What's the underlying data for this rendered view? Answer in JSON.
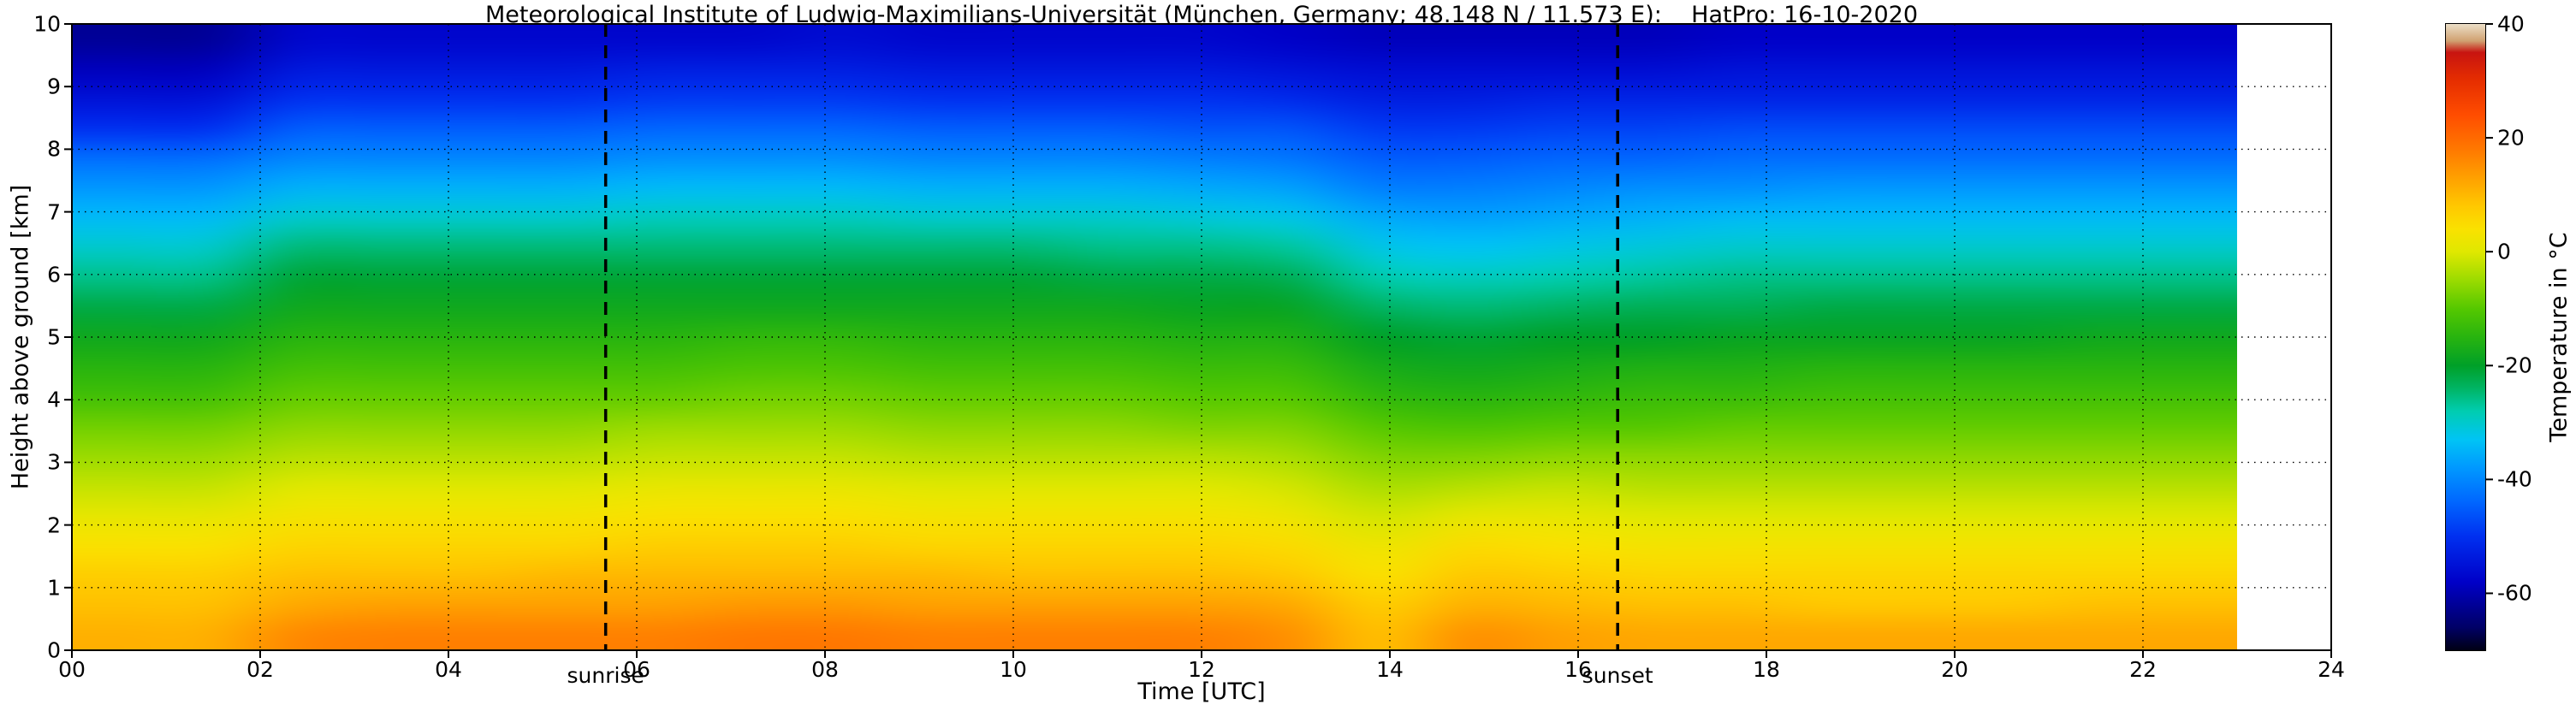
{
  "title": "Meteorological Institute of Ludwig-Maximilians-Universität (München, Germany; 48.148 N / 11.573 E):    HatPro: 16-10-2020",
  "background": "#ffffff",
  "chart_data": {
    "type": "heatmap",
    "xlabel": "Time [UTC]",
    "ylabel": "Height above ground [km]",
    "colorbar_label": "Temperature in °C",
    "x_range": [
      0,
      24
    ],
    "y_range": [
      0,
      10
    ],
    "grid": true,
    "x_tick_values": [
      0,
      2,
      4,
      6,
      8,
      10,
      12,
      14,
      16,
      18,
      20,
      22,
      24
    ],
    "x_tick_labels": [
      "00",
      "02",
      "04",
      "06",
      "08",
      "10",
      "12",
      "14",
      "16",
      "18",
      "20",
      "22",
      "24"
    ],
    "y_tick_values": [
      0,
      1,
      2,
      3,
      4,
      5,
      6,
      7,
      8,
      9,
      10
    ],
    "y_tick_labels": [
      "0",
      "1",
      "2",
      "3",
      "4",
      "5",
      "6",
      "7",
      "8",
      "9",
      "10"
    ],
    "colorbar_range": [
      -70,
      40
    ],
    "colorbar_tick_values": [
      40,
      20,
      0,
      -20,
      -40,
      -60
    ],
    "colorbar_tick_labels": [
      "40",
      "20",
      "0",
      "-20",
      "-40",
      "-60"
    ],
    "sunrise": {
      "time_utc": 5.67,
      "label": "sunrise"
    },
    "sunset": {
      "time_utc": 16.42,
      "label": "sunset"
    },
    "data_end_hour": 23,
    "x_hours": [
      0,
      1,
      2,
      3,
      4,
      5,
      6,
      7,
      8,
      9,
      10,
      11,
      12,
      13,
      14,
      15,
      16,
      17,
      18,
      19,
      20,
      21,
      22,
      23
    ],
    "heights_km": [
      0,
      0.5,
      1,
      1.5,
      2,
      2.5,
      3,
      3.5,
      4,
      4.5,
      5,
      5.5,
      6,
      6.5,
      7,
      7.5,
      8,
      8.5,
      9,
      9.5,
      10
    ],
    "temperature_c": [
      [
        11,
        9,
        7,
        4,
        1,
        -2,
        -5,
        -8,
        -12,
        -15,
        -18,
        -22,
        -26,
        -30,
        -34,
        -38,
        -43,
        -50,
        -55,
        -59,
        -62
      ],
      [
        11,
        9,
        7,
        4,
        1,
        -2,
        -5,
        -8,
        -12,
        -15,
        -18,
        -22,
        -26,
        -30,
        -34,
        -38,
        -43,
        -50,
        -55,
        -59,
        -62
      ],
      [
        16,
        12,
        9,
        6,
        3,
        0,
        -3,
        -6,
        -9,
        -12,
        -15,
        -18,
        -21,
        -25,
        -30,
        -35,
        -40,
        -45,
        -50,
        -54,
        -57
      ],
      [
        17,
        13,
        9,
        6,
        3,
        0,
        -3,
        -6,
        -9,
        -12,
        -15,
        -18,
        -21,
        -25,
        -30,
        -35,
        -40,
        -45,
        -50,
        -54,
        -57
      ],
      [
        17,
        13,
        9,
        6,
        3,
        0,
        -3,
        -6,
        -9,
        -12,
        -15,
        -18,
        -21,
        -25,
        -30,
        -35,
        -40,
        -45,
        -50,
        -54,
        -57
      ],
      [
        17,
        13,
        10,
        6,
        3,
        0,
        -3,
        -6,
        -9,
        -12,
        -15,
        -18,
        -21,
        -25,
        -30,
        -35,
        -40,
        -45,
        -50,
        -54,
        -57
      ],
      [
        17,
        13,
        10,
        7,
        4,
        1,
        -2,
        -5,
        -9,
        -12,
        -15,
        -18,
        -21,
        -25,
        -29,
        -34,
        -39,
        -44,
        -49,
        -53,
        -57
      ],
      [
        18,
        14,
        10,
        7,
        4,
        1,
        -2,
        -5,
        -8,
        -11,
        -14,
        -18,
        -21,
        -25,
        -29,
        -34,
        -39,
        -44,
        -49,
        -53,
        -57
      ],
      [
        18,
        14,
        10,
        7,
        4,
        1,
        -2,
        -5,
        -8,
        -11,
        -14,
        -18,
        -21,
        -25,
        -29,
        -34,
        -39,
        -44,
        -49,
        -53,
        -56
      ],
      [
        17,
        13,
        10,
        6,
        3,
        0,
        -3,
        -6,
        -9,
        -12,
        -15,
        -18,
        -21,
        -25,
        -30,
        -35,
        -40,
        -45,
        -50,
        -54,
        -57
      ],
      [
        17,
        13,
        9,
        6,
        3,
        0,
        -3,
        -6,
        -9,
        -12,
        -15,
        -18,
        -21,
        -25,
        -30,
        -35,
        -40,
        -45,
        -50,
        -54,
        -57
      ],
      [
        17,
        13,
        9,
        6,
        3,
        0,
        -3,
        -6,
        -9,
        -12,
        -15,
        -18,
        -22,
        -26,
        -30,
        -35,
        -40,
        -45,
        -50,
        -54,
        -57
      ],
      [
        17,
        13,
        9,
        6,
        3,
        0,
        -3,
        -7,
        -10,
        -13,
        -16,
        -19,
        -22,
        -26,
        -31,
        -36,
        -41,
        -46,
        -50,
        -54,
        -57
      ],
      [
        15,
        12,
        8,
        5,
        2,
        -1,
        -4,
        -7,
        -10,
        -13,
        -16,
        -19,
        -23,
        -27,
        -32,
        -37,
        -42,
        -46,
        -51,
        -55,
        -58
      ],
      [
        9,
        7,
        4,
        2,
        -1,
        -4,
        -7,
        -10,
        -14,
        -17,
        -20,
        -24,
        -28,
        -32,
        -36,
        -41,
        -45,
        -49,
        -53,
        -56,
        -59
      ],
      [
        15,
        11,
        8,
        5,
        1,
        -3,
        -7,
        -11,
        -15,
        -18,
        -21,
        -25,
        -29,
        -33,
        -37,
        -41,
        -45,
        -49,
        -53,
        -56,
        -59
      ],
      [
        13,
        10,
        7,
        4,
        1,
        -2,
        -6,
        -10,
        -14,
        -17,
        -20,
        -24,
        -28,
        -32,
        -36,
        -40,
        -44,
        -48,
        -52,
        -56,
        -59
      ],
      [
        12,
        9,
        6,
        3,
        0,
        -3,
        -6,
        -10,
        -13,
        -16,
        -20,
        -23,
        -27,
        -31,
        -35,
        -39,
        -44,
        -48,
        -52,
        -56,
        -59
      ],
      [
        12,
        9,
        6,
        3,
        0,
        -3,
        -6,
        -9,
        -13,
        -16,
        -19,
        -23,
        -26,
        -30,
        -34,
        -39,
        -43,
        -47,
        -52,
        -55,
        -58
      ],
      [
        12,
        8,
        6,
        3,
        0,
        -3,
        -6,
        -9,
        -12,
        -15,
        -19,
        -22,
        -26,
        -30,
        -34,
        -38,
        -43,
        -47,
        -52,
        -55,
        -58
      ],
      [
        12,
        8,
        6,
        3,
        0,
        -3,
        -6,
        -9,
        -12,
        -15,
        -19,
        -22,
        -26,
        -30,
        -34,
        -38,
        -43,
        -47,
        -52,
        -55,
        -58
      ],
      [
        12,
        8,
        6,
        3,
        0,
        -3,
        -6,
        -9,
        -12,
        -15,
        -19,
        -22,
        -26,
        -30,
        -34,
        -38,
        -43,
        -47,
        -52,
        -55,
        -58
      ],
      [
        12,
        9,
        6,
        3,
        0,
        -3,
        -6,
        -9,
        -12,
        -15,
        -18,
        -22,
        -26,
        -30,
        -34,
        -38,
        -43,
        -47,
        -52,
        -55,
        -58
      ],
      [
        12,
        9,
        6,
        3,
        0,
        -3,
        -6,
        -9,
        -12,
        -15,
        -18,
        -22,
        -26,
        -30,
        -34,
        -38,
        -43,
        -47,
        -52,
        -55,
        -58
      ]
    ],
    "colormap_stops": [
      [
        -70,
        "#000014"
      ],
      [
        -66,
        "#000066"
      ],
      [
        -58,
        "#0000c8"
      ],
      [
        -50,
        "#0030f0"
      ],
      [
        -44,
        "#0066ff"
      ],
      [
        -38,
        "#0098ff"
      ],
      [
        -33,
        "#00c4f5"
      ],
      [
        -28,
        "#00cdb0"
      ],
      [
        -24,
        "#00b464"
      ],
      [
        -20,
        "#00a028"
      ],
      [
        -15,
        "#28b40f"
      ],
      [
        -10,
        "#55c800"
      ],
      [
        -5,
        "#9bdb00"
      ],
      [
        0,
        "#e0e800"
      ],
      [
        4,
        "#fae100"
      ],
      [
        8,
        "#ffc800"
      ],
      [
        13,
        "#ffa000"
      ],
      [
        18,
        "#ff7800"
      ],
      [
        24,
        "#ff4d00"
      ],
      [
        30,
        "#e62e00"
      ],
      [
        35,
        "#c81410"
      ],
      [
        37,
        "#d0a070"
      ],
      [
        40,
        "#ecdfc8"
      ]
    ],
    "colors": {
      "grid": "#000000",
      "sun_lines": "#000000",
      "plot_border": "#000000"
    }
  }
}
